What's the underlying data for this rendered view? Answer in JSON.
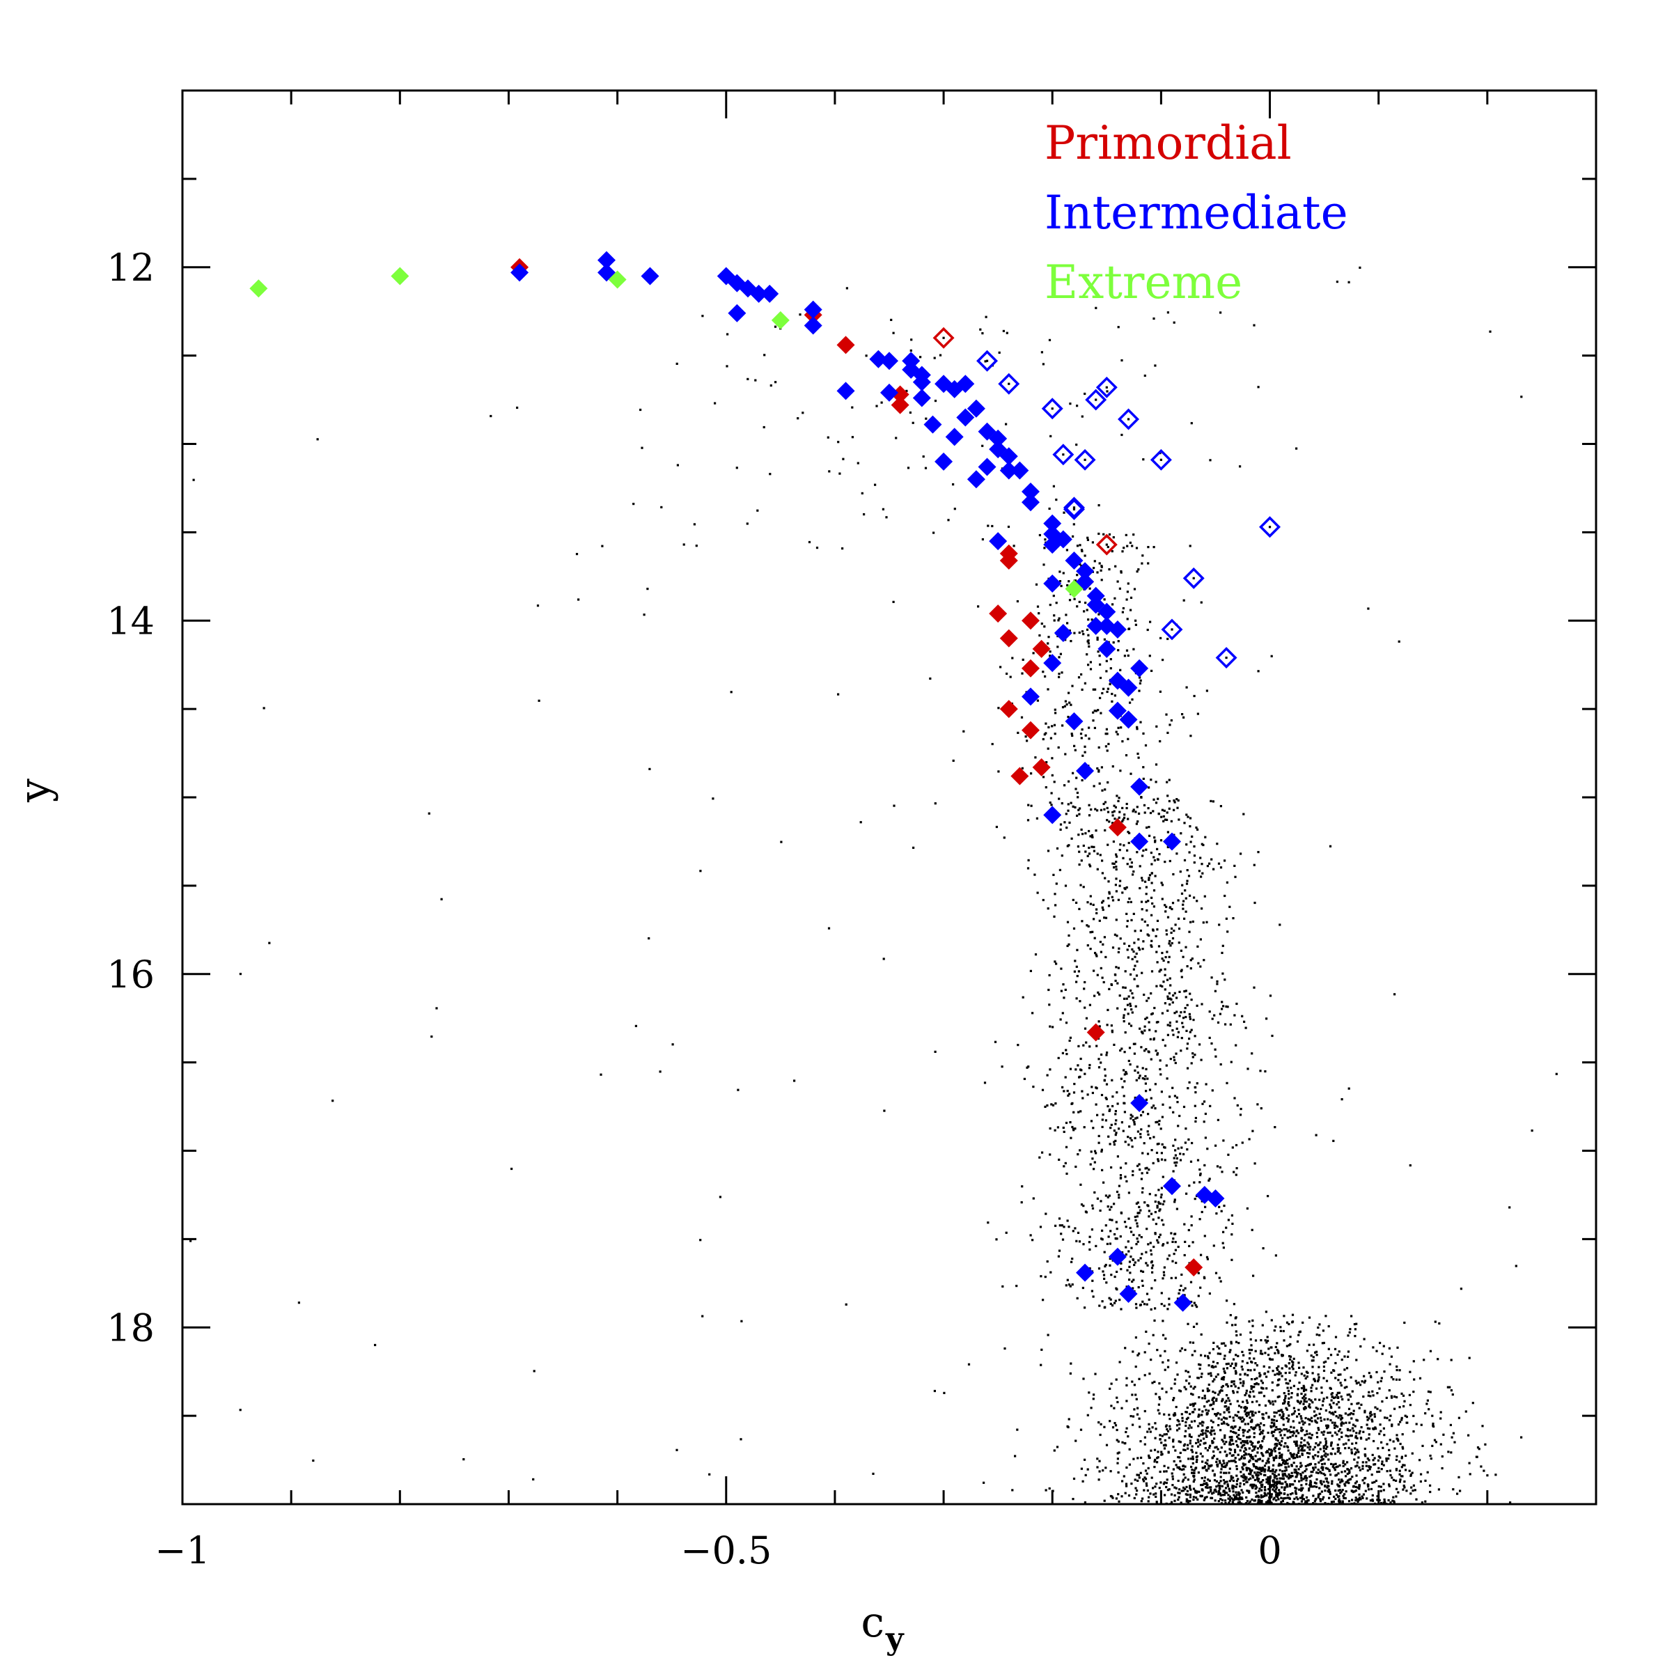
{
  "chart_data": {
    "type": "scatter",
    "title": "",
    "xlabel": "c",
    "xlabel_subscript": "y",
    "ylabel": "y",
    "xlim": [
      -1.0,
      0.3
    ],
    "ylim": [
      19.0,
      11.0
    ],
    "y_inverted": true,
    "x_major_ticks": [
      -1,
      -0.5,
      0
    ],
    "x_major_tick_labels": [
      "−1",
      "−0.5",
      "0"
    ],
    "x_minor_step": 0.1,
    "y_major_ticks": [
      12,
      14,
      16,
      18
    ],
    "y_major_tick_labels": [
      "12",
      "14",
      "16",
      "18"
    ],
    "y_minor_step": 0.5,
    "grid": false,
    "legend_position": "top-right",
    "legend": [
      {
        "label": "Primordial",
        "color": "#d40000"
      },
      {
        "label": "Intermediate",
        "color": "#0000ff"
      },
      {
        "label": "Extreme",
        "color": "#7dff3c"
      }
    ],
    "background_field": {
      "description": "field stars",
      "color": "#000000",
      "distributions": [
        {
          "n": 2600,
          "x_mean": 0.0,
          "x_sd": 0.07,
          "y_min": 17.9,
          "y_max": 19.0
        },
        {
          "n": 1400,
          "x_mean": -0.12,
          "x_sd": 0.045,
          "y_min": 15.0,
          "y_max": 17.9
        },
        {
          "n": 350,
          "x_mean": -0.16,
          "x_sd": 0.035,
          "y_min": 13.5,
          "y_max": 15.0
        },
        {
          "n": 90,
          "x_mean": -0.3,
          "x_sd": 0.12,
          "y_min": 12.2,
          "y_max": 13.6
        },
        {
          "n": 160,
          "x_mean": -0.3,
          "x_sd": 0.35,
          "y_min": 12.0,
          "y_max": 19.0
        }
      ]
    },
    "series": [
      {
        "name": "Primordial",
        "color": "#d40000",
        "marker": "diamond-filled",
        "points": [
          [
            -0.69,
            12.0
          ],
          [
            -0.42,
            12.27
          ],
          [
            -0.39,
            12.44
          ],
          [
            -0.34,
            12.72
          ],
          [
            -0.34,
            12.78
          ],
          [
            -0.24,
            13.62
          ],
          [
            -0.24,
            13.66
          ],
          [
            -0.25,
            13.96
          ],
          [
            -0.24,
            14.1
          ],
          [
            -0.22,
            14.0
          ],
          [
            -0.21,
            14.16
          ],
          [
            -0.22,
            14.27
          ],
          [
            -0.24,
            14.5
          ],
          [
            -0.22,
            14.62
          ],
          [
            -0.21,
            14.83
          ],
          [
            -0.23,
            14.88
          ],
          [
            -0.17,
            13.78
          ],
          [
            -0.14,
            15.17
          ],
          [
            -0.16,
            16.33
          ],
          [
            -0.07,
            17.66
          ]
        ]
      },
      {
        "name": "Primordial (open)",
        "color": "#d40000",
        "marker": "diamond-open",
        "points": [
          [
            -0.3,
            12.4
          ],
          [
            -0.15,
            13.57
          ]
        ]
      },
      {
        "name": "Intermediate",
        "color": "#0000ff",
        "marker": "diamond-filled",
        "points": [
          [
            -0.69,
            12.03
          ],
          [
            -0.61,
            11.96
          ],
          [
            -0.61,
            12.03
          ],
          [
            -0.57,
            12.05
          ],
          [
            -0.5,
            12.05
          ],
          [
            -0.49,
            12.09
          ],
          [
            -0.48,
            12.12
          ],
          [
            -0.47,
            12.15
          ],
          [
            -0.46,
            12.15
          ],
          [
            -0.49,
            12.26
          ],
          [
            -0.42,
            12.24
          ],
          [
            -0.42,
            12.33
          ],
          [
            -0.39,
            12.7
          ],
          [
            -0.36,
            12.52
          ],
          [
            -0.35,
            12.53
          ],
          [
            -0.33,
            12.53
          ],
          [
            -0.33,
            12.58
          ],
          [
            -0.32,
            12.61
          ],
          [
            -0.32,
            12.65
          ],
          [
            -0.3,
            12.66
          ],
          [
            -0.29,
            12.69
          ],
          [
            -0.35,
            12.71
          ],
          [
            -0.32,
            12.74
          ],
          [
            -0.28,
            12.66
          ],
          [
            -0.27,
            12.8
          ],
          [
            -0.31,
            12.89
          ],
          [
            -0.29,
            12.96
          ],
          [
            -0.28,
            12.85
          ],
          [
            -0.26,
            12.93
          ],
          [
            -0.25,
            12.97
          ],
          [
            -0.25,
            13.03
          ],
          [
            -0.24,
            13.07
          ],
          [
            -0.3,
            13.1
          ],
          [
            -0.26,
            13.13
          ],
          [
            -0.27,
            13.2
          ],
          [
            -0.24,
            13.15
          ],
          [
            -0.23,
            13.15
          ],
          [
            -0.22,
            13.27
          ],
          [
            -0.22,
            13.33
          ],
          [
            -0.2,
            13.45
          ],
          [
            -0.2,
            13.51
          ],
          [
            -0.19,
            13.54
          ],
          [
            -0.2,
            13.57
          ],
          [
            -0.25,
            13.55
          ],
          [
            -0.18,
            13.66
          ],
          [
            -0.17,
            13.72
          ],
          [
            -0.17,
            13.78
          ],
          [
            -0.2,
            13.79
          ],
          [
            -0.16,
            13.86
          ],
          [
            -0.16,
            13.91
          ],
          [
            -0.15,
            13.95
          ],
          [
            -0.16,
            14.03
          ],
          [
            -0.15,
            14.03
          ],
          [
            -0.14,
            14.05
          ],
          [
            -0.19,
            14.07
          ],
          [
            -0.15,
            14.16
          ],
          [
            -0.2,
            14.24
          ],
          [
            -0.12,
            14.27
          ],
          [
            -0.14,
            14.34
          ],
          [
            -0.13,
            14.38
          ],
          [
            -0.22,
            14.43
          ],
          [
            -0.14,
            14.51
          ],
          [
            -0.13,
            14.56
          ],
          [
            -0.18,
            14.57
          ],
          [
            -0.17,
            14.85
          ],
          [
            -0.12,
            14.94
          ],
          [
            -0.2,
            15.1
          ],
          [
            -0.12,
            15.25
          ],
          [
            -0.09,
            15.25
          ],
          [
            -0.12,
            16.73
          ],
          [
            -0.09,
            17.2
          ],
          [
            -0.06,
            17.25
          ],
          [
            -0.05,
            17.27
          ],
          [
            -0.14,
            17.6
          ],
          [
            -0.17,
            17.69
          ],
          [
            -0.13,
            17.81
          ],
          [
            -0.08,
            17.86
          ]
        ]
      },
      {
        "name": "Intermediate (open)",
        "color": "#0000ff",
        "marker": "diamond-open",
        "points": [
          [
            -0.26,
            12.53
          ],
          [
            -0.24,
            12.66
          ],
          [
            -0.2,
            12.8
          ],
          [
            -0.16,
            12.75
          ],
          [
            -0.15,
            12.68
          ],
          [
            -0.13,
            12.86
          ],
          [
            -0.19,
            13.06
          ],
          [
            -0.17,
            13.09
          ],
          [
            -0.1,
            13.09
          ],
          [
            -0.18,
            13.36
          ],
          [
            -0.18,
            13.37
          ],
          [
            0.0,
            13.47
          ],
          [
            -0.07,
            13.76
          ],
          [
            -0.09,
            14.05
          ],
          [
            -0.04,
            14.21
          ]
        ]
      },
      {
        "name": "Extreme",
        "color": "#7dff3c",
        "marker": "diamond-filled",
        "points": [
          [
            -0.93,
            12.12
          ],
          [
            -0.8,
            12.05
          ],
          [
            -0.6,
            12.07
          ],
          [
            -0.45,
            12.3
          ],
          [
            -0.18,
            13.82
          ]
        ]
      }
    ]
  }
}
